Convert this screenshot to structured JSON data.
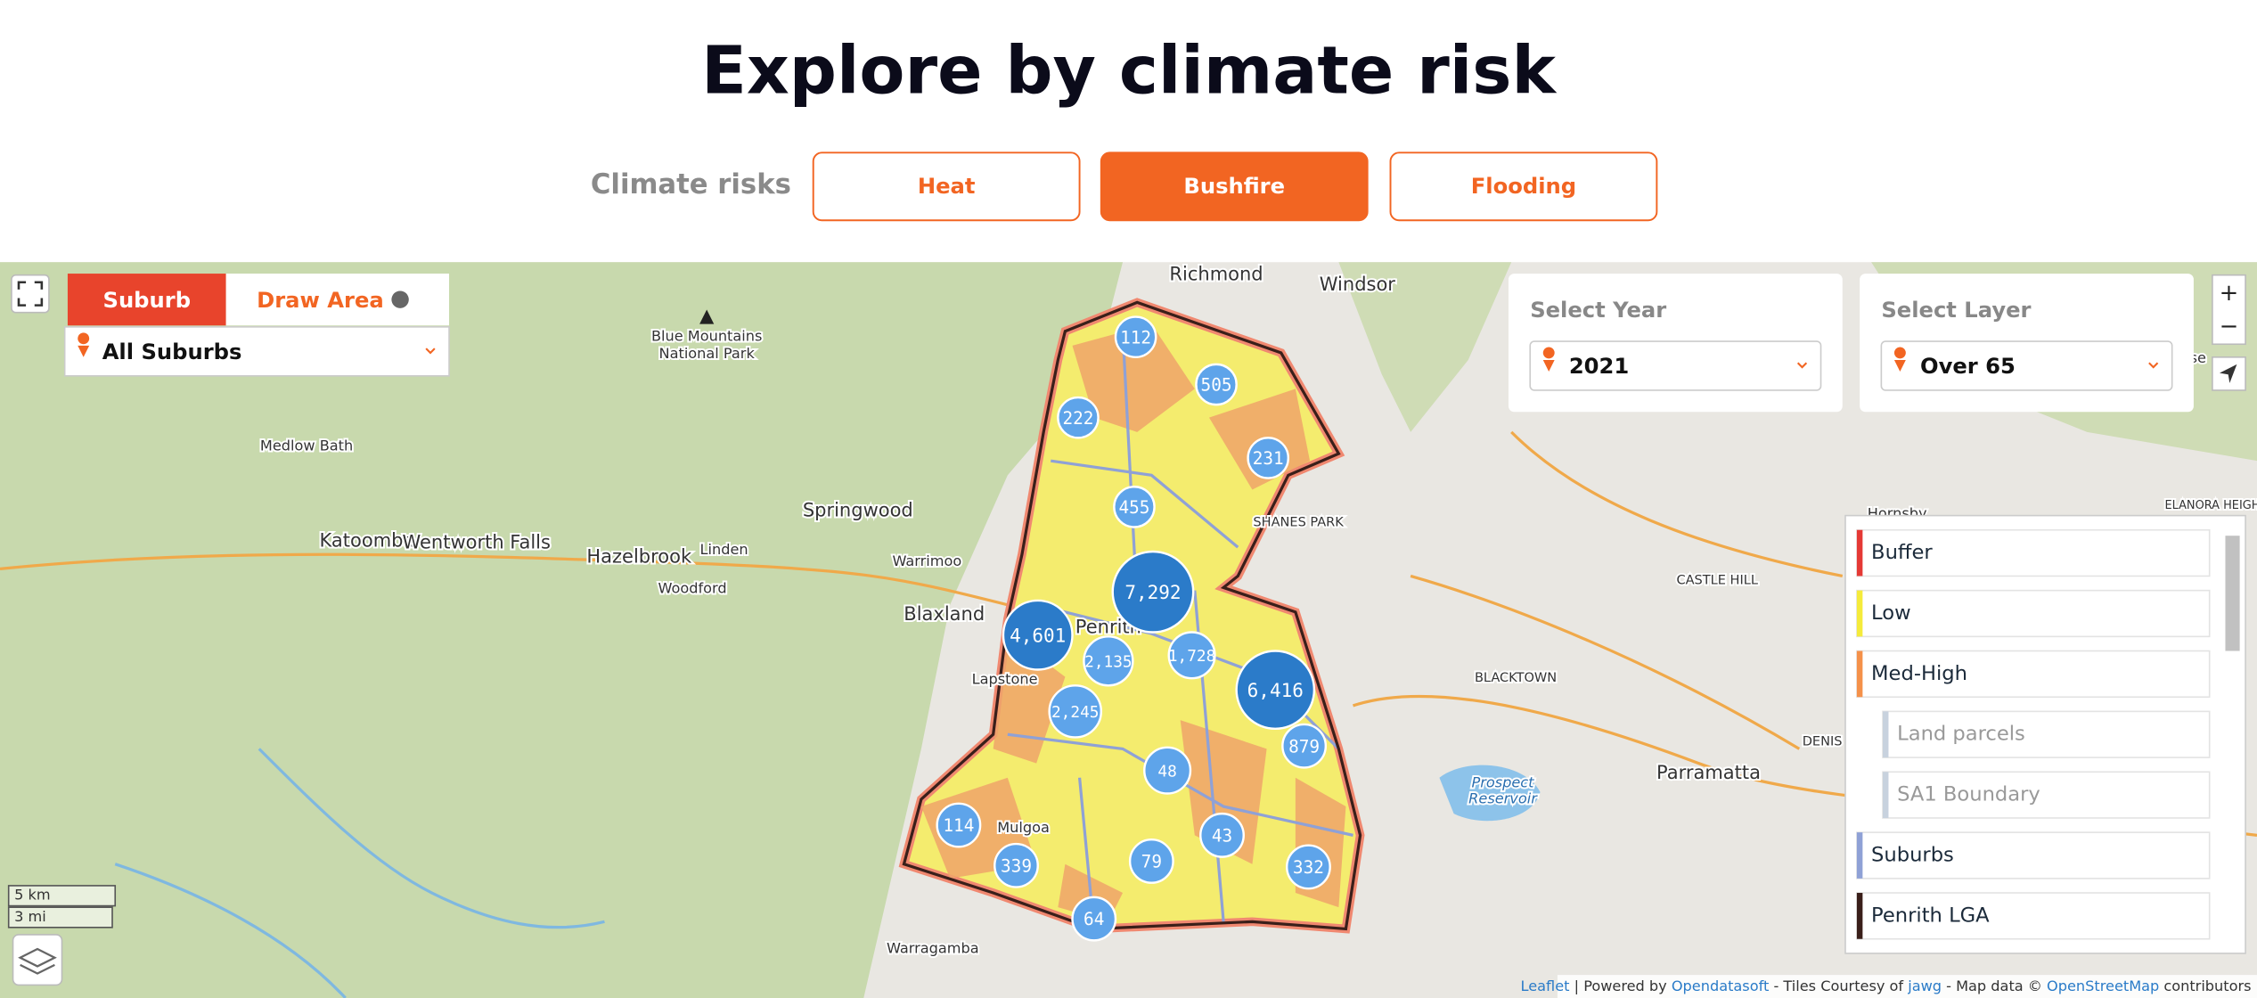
{
  "header": {
    "title": "Explore by climate risk"
  },
  "risk_tabs": {
    "label": "Climate risks",
    "options": [
      "Heat",
      "Bushfire",
      "Flooding"
    ],
    "active_index": 1
  },
  "map_controls": {
    "mode_tabs": [
      "Suburb",
      "Draw Area"
    ],
    "active_mode": 0,
    "suburb_select": "All Suburbs",
    "year": {
      "label": "Select Year",
      "value": "2021"
    },
    "layer": {
      "label": "Select Layer",
      "value": "Over 65"
    },
    "zoom": [
      "+",
      "−"
    ]
  },
  "clusters": [
    "112",
    "505",
    "222",
    "231",
    "455",
    "7,292",
    "4,601",
    "2,135",
    "1,728",
    "6,416",
    "2,245",
    "879",
    "48",
    "43",
    "114",
    "339",
    "79",
    "332",
    "64"
  ],
  "places": [
    "Richmond",
    "Windsor",
    "Blue Mountains",
    "National Park",
    "Medlow Bath",
    "Katoomba",
    "Wentworth Falls",
    "Hazelbrook",
    "Linden",
    "Springwood",
    "Warrimoo",
    "Woodford",
    "Blaxland",
    "Penrith",
    "Lapstone",
    "Mulgoa",
    "Warragamba",
    "SHANES PARK",
    "CASTLE HILL",
    "BLACKTOWN",
    "Prospect",
    "Reservoir",
    "Parramatta",
    "Hornsby",
    "ELANORA HEIGHTS",
    "DENIS",
    "se"
  ],
  "legend": {
    "items": [
      {
        "label": "Buffer",
        "color": "#e53935"
      },
      {
        "label": "Low",
        "color": "#f5eb3b"
      },
      {
        "label": "Med-High",
        "color": "#f5914a"
      },
      {
        "label": "Land parcels",
        "color": "#c8d2de",
        "sub": true
      },
      {
        "label": "SA1 Boundary",
        "color": "#c8d2de",
        "sub": true
      },
      {
        "label": "Suburbs",
        "color": "#8fa1d6"
      },
      {
        "label": "Penrith LGA",
        "color": "#3a1f1a"
      }
    ]
  },
  "scale": [
    "5 km",
    "3 mi"
  ],
  "attribution": [
    {
      "text": "Leaflet",
      "link": true
    },
    {
      "text": " | Powered by ",
      "link": false
    },
    {
      "text": "Opendatasoft",
      "link": true
    },
    {
      "text": " - Tiles Courtesy of ",
      "link": false
    },
    {
      "text": "jawg",
      "link": true
    },
    {
      "text": " - Map data © ",
      "link": false
    },
    {
      "text": "OpenStreetMap",
      "link": true
    },
    {
      "text": " contributors",
      "link": false
    }
  ]
}
